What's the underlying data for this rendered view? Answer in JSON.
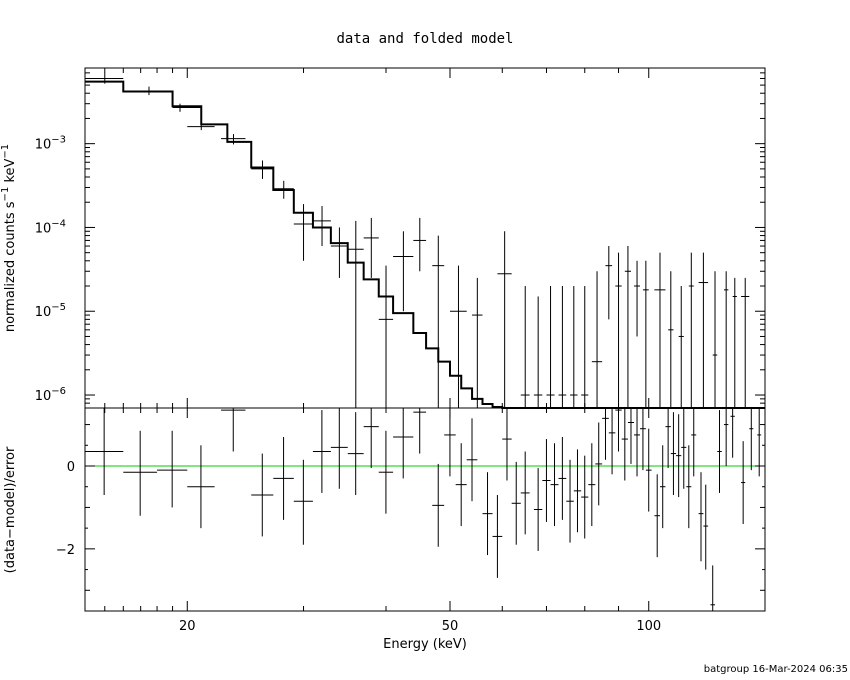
{
  "chart_data": {
    "type": "scatter",
    "title": "data and folded model",
    "footer": "batgroup 16-Mar-2024 06:35",
    "xlabel": "Energy (keV)",
    "x_scale": "log",
    "xlim": [
      14,
      150
    ],
    "x_ticks": [
      {
        "value": 20,
        "label": "20"
      },
      {
        "value": 50,
        "label": "50"
      },
      {
        "value": 100,
        "label": "100"
      }
    ],
    "top_panel": {
      "ylabel_parts": [
        "normalized counts s",
        "−1",
        " keV",
        "−1"
      ],
      "y_scale": "log",
      "ylim": [
        7e-07,
        0.008
      ],
      "y_ticks": [
        {
          "value": 1e-06,
          "base": "10",
          "exp": "−6"
        },
        {
          "value": 1e-05,
          "base": "10",
          "exp": "−5"
        },
        {
          "value": 0.0001,
          "base": "10",
          "exp": "−4"
        },
        {
          "value": 0.001,
          "base": "10",
          "exp": "−3"
        }
      ],
      "data": [
        {
          "x": 15.0,
          "xl": 14.0,
          "xh": 16.0,
          "y": 0.006,
          "yl": 0.0052,
          "yh": 0.007
        },
        {
          "x": 17.5,
          "xl": 16.0,
          "xh": 19.0,
          "y": 0.0042,
          "yl": 0.0038,
          "yh": 0.0048
        },
        {
          "x": 19.5,
          "xl": 19.0,
          "xh": 21.0,
          "y": 0.0027,
          "yl": 0.0024,
          "yh": 0.003
        },
        {
          "x": 21.0,
          "xl": 20.0,
          "xh": 22.0,
          "y": 0.0016,
          "yl": 0.00145,
          "yh": 0.0018
        },
        {
          "x": 23.5,
          "xl": 22.5,
          "xh": 24.5,
          "y": 0.00115,
          "yl": 0.00098,
          "yh": 0.0013
        },
        {
          "x": 26.0,
          "xl": 25.0,
          "xh": 27.0,
          "y": 0.0005,
          "yl": 0.00038,
          "yh": 0.00063
        },
        {
          "x": 28.0,
          "xl": 27.0,
          "xh": 29.0,
          "y": 0.00029,
          "yl": 0.00022,
          "yh": 0.00036
        },
        {
          "x": 30.0,
          "xl": 29.0,
          "xh": 31.0,
          "y": 0.00011,
          "yl": 4e-05,
          "yh": 0.00019
        },
        {
          "x": 32.0,
          "xl": 31.0,
          "xh": 33.0,
          "y": 0.00012,
          "yl": 6e-05,
          "yh": 0.00018
        },
        {
          "x": 34.0,
          "xl": 33.0,
          "xh": 35.0,
          "y": 6e-05,
          "yl": 2.5e-05,
          "yh": 0.0001
        },
        {
          "x": 36.0,
          "xl": 35.0,
          "xh": 37.0,
          "y": 5.5e-05,
          "yl": 7e-07,
          "yh": 0.00012
        },
        {
          "x": 38.0,
          "xl": 37.0,
          "xh": 39.0,
          "y": 7.5e-05,
          "yl": 2.5e-05,
          "yh": 0.00013
        },
        {
          "x": 40.0,
          "xl": 39.0,
          "xh": 41.0,
          "y": 8e-06,
          "yl": 7e-07,
          "yh": 3.5e-05
        },
        {
          "x": 42.5,
          "xl": 41.0,
          "xh": 44.0,
          "y": 4.5e-05,
          "yl": 1e-05,
          "yh": 9e-05
        },
        {
          "x": 45.0,
          "xl": 44.0,
          "xh": 46.0,
          "y": 7e-05,
          "yl": 3e-05,
          "yh": 0.00013
        },
        {
          "x": 48.0,
          "xl": 47.0,
          "xh": 49.0,
          "y": 3.5e-05,
          "yl": 7e-07,
          "yh": 8e-05
        },
        {
          "x": 51.5,
          "xl": 50.0,
          "xh": 53.0,
          "y": 1e-05,
          "yl": 7e-07,
          "yh": 3.5e-05
        },
        {
          "x": 55.0,
          "xl": 54.0,
          "xh": 56.0,
          "y": 9e-06,
          "yl": 7e-07,
          "yh": 2.5e-05
        },
        {
          "x": 60.5,
          "xl": 59.0,
          "xh": 62.0,
          "y": 2.8e-05,
          "yl": 7e-07,
          "yh": 9e-05
        },
        {
          "x": 65.0,
          "xl": 64.0,
          "xh": 66.0,
          "y": 1e-06,
          "yl": 7e-07,
          "yh": 2e-05
        },
        {
          "x": 68.0,
          "xl": 67.0,
          "xh": 69.0,
          "y": 1e-06,
          "yl": 7e-07,
          "yh": 1.5e-05
        },
        {
          "x": 71.0,
          "xl": 70.0,
          "xh": 72.0,
          "y": 1e-06,
          "yl": 7e-07,
          "yh": 2e-05
        },
        {
          "x": 74.0,
          "xl": 73.0,
          "xh": 75.0,
          "y": 1e-06,
          "yl": 7e-07,
          "yh": 2e-05
        },
        {
          "x": 77.0,
          "xl": 76.0,
          "xh": 78.0,
          "y": 1e-06,
          "yl": 7e-07,
          "yh": 2e-05
        },
        {
          "x": 80.0,
          "xl": 79.0,
          "xh": 81.0,
          "y": 1e-06,
          "yl": 7e-07,
          "yh": 2e-05
        },
        {
          "x": 83.5,
          "xl": 82.0,
          "xh": 85.0,
          "y": 2.5e-06,
          "yl": 7e-07,
          "yh": 3e-05
        },
        {
          "x": 87.0,
          "xl": 86.0,
          "xh": 88.0,
          "y": 3.5e-05,
          "yl": 8e-06,
          "yh": 6e-05
        },
        {
          "x": 90.0,
          "xl": 89.0,
          "xh": 91.0,
          "y": 2e-05,
          "yl": 7e-07,
          "yh": 5e-05
        },
        {
          "x": 93.0,
          "xl": 92.0,
          "xh": 94.0,
          "y": 3e-05,
          "yl": 7e-07,
          "yh": 6e-05
        },
        {
          "x": 96.0,
          "xl": 95.0,
          "xh": 97.0,
          "y": 2e-05,
          "yl": 5e-06,
          "yh": 4e-05
        },
        {
          "x": 99.0,
          "xl": 98.0,
          "xh": 100.0,
          "y": 1.8e-05,
          "yl": 7e-07,
          "yh": 4e-05
        },
        {
          "x": 104.0,
          "xl": 102.0,
          "xh": 106.0,
          "y": 1.8e-05,
          "yl": 7e-07,
          "yh": 5e-05
        },
        {
          "x": 108.0,
          "xl": 107.0,
          "xh": 109.0,
          "y": 6e-06,
          "yl": 7e-07,
          "yh": 3e-05
        },
        {
          "x": 112.0,
          "xl": 111.0,
          "xh": 113.0,
          "y": 5e-06,
          "yl": 7e-07,
          "yh": 2e-05
        },
        {
          "x": 116.0,
          "xl": 115.0,
          "xh": 117.0,
          "y": 2e-05,
          "yl": 7e-07,
          "yh": 5e-05
        },
        {
          "x": 121.0,
          "xl": 119.0,
          "xh": 123.0,
          "y": 2.2e-05,
          "yl": 7e-07,
          "yh": 5e-05
        },
        {
          "x": 126.0,
          "xl": 125.0,
          "xh": 127.0,
          "y": 3e-06,
          "yl": 7e-07,
          "yh": 3e-05
        },
        {
          "x": 131.0,
          "xl": 130.0,
          "xh": 132.0,
          "y": 1.8e-05,
          "yl": 7e-07,
          "yh": 3e-05
        },
        {
          "x": 135.0,
          "xl": 134.0,
          "xh": 136.0,
          "y": 1.5e-05,
          "yl": 7e-07,
          "yh": 2.5e-05
        },
        {
          "x": 140.0,
          "xl": 138.0,
          "xh": 142.0,
          "y": 1.5e-05,
          "yl": 7e-07,
          "yh": 2.5e-05
        }
      ],
      "model": [
        [
          14.0,
          0.0055
        ],
        [
          16.0,
          0.0042
        ],
        [
          19.0,
          0.0028
        ],
        [
          21.0,
          0.0017
        ],
        [
          23.0,
          0.00105
        ],
        [
          25.0,
          0.00052
        ],
        [
          27.0,
          0.00028
        ],
        [
          29.0,
          0.00015
        ],
        [
          31.0,
          0.0001
        ],
        [
          33.0,
          6.5e-05
        ],
        [
          35.0,
          3.8e-05
        ],
        [
          37.0,
          2.4e-05
        ],
        [
          39.0,
          1.5e-05
        ],
        [
          41.0,
          9.5e-06
        ],
        [
          44.0,
          5.5e-06
        ],
        [
          46.0,
          3.6e-06
        ],
        [
          48.0,
          2.5e-06
        ],
        [
          50.0,
          1.7e-06
        ],
        [
          52.0,
          1.2e-06
        ],
        [
          54.0,
          9e-07
        ],
        [
          56.0,
          7.8e-07
        ],
        [
          58.0,
          7.2e-07
        ],
        [
          60.0,
          7e-07
        ],
        [
          150.0,
          7e-07
        ]
      ]
    },
    "bottom_panel": {
      "ylabel": "(data−model)/error",
      "ylim": [
        -3.5,
        1.4
      ],
      "y_ticks": [
        {
          "value": 0,
          "label": "0"
        },
        {
          "value": -2,
          "label": "−2"
        }
      ],
      "zero_line_color": "#00cc00",
      "data": [
        {
          "xl": 14.0,
          "xh": 16.0,
          "y": 0.35,
          "yl": -0.7,
          "yh": 1.4
        },
        {
          "xl": 16.0,
          "xh": 18.0,
          "y": -0.15,
          "yl": -1.2,
          "yh": 0.85
        },
        {
          "xl": 18.0,
          "xh": 20.0,
          "y": -0.1,
          "yl": -1.0,
          "yh": 0.85
        },
        {
          "xl": 20.0,
          "xh": 22.0,
          "y": -0.5,
          "yl": -1.5,
          "yh": 0.5
        },
        {
          "xl": 22.5,
          "xh": 24.5,
          "y": 1.35,
          "yl": 0.35,
          "yh": 1.4
        },
        {
          "xl": 25.0,
          "xh": 27.0,
          "y": -0.7,
          "yl": -1.7,
          "yh": 0.3
        },
        {
          "xl": 27.0,
          "xh": 29.0,
          "y": -0.3,
          "yl": -1.3,
          "yh": 0.7
        },
        {
          "xl": 29.0,
          "xh": 31.0,
          "y": -0.85,
          "yl": -1.9,
          "yh": 0.15
        },
        {
          "xl": 31.0,
          "xh": 33.0,
          "y": 0.35,
          "yl": -0.65,
          "yh": 1.35
        },
        {
          "xl": 33.0,
          "xh": 35.0,
          "y": 0.45,
          "yl": -0.55,
          "yh": 1.4
        },
        {
          "xl": 35.0,
          "xh": 37.0,
          "y": 0.3,
          "yl": -0.7,
          "yh": 1.3
        },
        {
          "xl": 37.0,
          "xh": 39.0,
          "y": 0.95,
          "yl": -0.05,
          "yh": 1.4
        },
        {
          "xl": 39.0,
          "xh": 41.0,
          "y": -0.15,
          "yl": -1.15,
          "yh": 0.85
        },
        {
          "xl": 41.0,
          "xh": 44.0,
          "y": 0.7,
          "yl": -0.3,
          "yh": 1.4
        },
        {
          "xl": 44.0,
          "xh": 46.0,
          "y": 1.3,
          "yl": 0.3,
          "yh": 1.4
        },
        {
          "xl": 47.0,
          "xh": 49.0,
          "y": -0.95,
          "yl": -1.95,
          "yh": 0.05
        },
        {
          "xl": 49.0,
          "xh": 51.0,
          "y": 0.75,
          "yl": -0.25,
          "yh": 1.4
        },
        {
          "xl": 51.0,
          "xh": 53.0,
          "y": -0.45,
          "yl": -1.45,
          "yh": 0.55
        },
        {
          "xl": 53.0,
          "xh": 55.0,
          "y": 0.15,
          "yl": -0.85,
          "yh": 1.15
        },
        {
          "xl": 56.0,
          "xh": 58.0,
          "y": -1.15,
          "yl": -2.15,
          "yh": -0.15
        },
        {
          "xl": 58.0,
          "xh": 60.0,
          "y": -1.7,
          "yl": -2.7,
          "yh": -0.7
        },
        {
          "xl": 60.0,
          "xh": 62.0,
          "y": 0.65,
          "yl": -0.35,
          "yh": 1.4
        },
        {
          "xl": 62.0,
          "xh": 64.0,
          "y": -0.9,
          "yl": -1.9,
          "yh": 0.1
        },
        {
          "xl": 64.0,
          "xh": 66.0,
          "y": -0.65,
          "yl": -1.65,
          "yh": 0.35
        },
        {
          "xl": 67.0,
          "xh": 69.0,
          "y": -1.05,
          "yl": -2.05,
          "yh": -0.05
        },
        {
          "xl": 69.0,
          "xh": 71.0,
          "y": -0.35,
          "yl": -1.35,
          "yh": 0.65
        },
        {
          "xl": 71.0,
          "xh": 73.0,
          "y": -0.45,
          "yl": -1.45,
          "yh": 0.55
        },
        {
          "xl": 73.0,
          "xh": 75.0,
          "y": -0.3,
          "yl": -1.3,
          "yh": 0.7
        },
        {
          "xl": 75.0,
          "xh": 77.0,
          "y": -0.85,
          "yl": -1.85,
          "yh": 0.15
        },
        {
          "xl": 77.0,
          "xh": 79.0,
          "y": -0.6,
          "yl": -1.6,
          "yh": 0.4
        },
        {
          "xl": 79.0,
          "xh": 81.0,
          "y": -0.75,
          "yl": -1.75,
          "yh": 0.25
        },
        {
          "xl": 81.0,
          "xh": 83.0,
          "y": -0.45,
          "yl": -1.45,
          "yh": 0.55
        },
        {
          "xl": 83.0,
          "xh": 85.0,
          "y": 0.05,
          "yl": -0.95,
          "yh": 1.05
        },
        {
          "xl": 85.0,
          "xh": 87.0,
          "y": 1.15,
          "yl": 0.15,
          "yh": 1.4
        },
        {
          "xl": 87.0,
          "xh": 89.0,
          "y": 0.8,
          "yl": -0.2,
          "yh": 1.4
        },
        {
          "xl": 89.0,
          "xh": 91.0,
          "y": 1.35,
          "yl": 0.35,
          "yh": 1.4
        },
        {
          "xl": 91.0,
          "xh": 93.0,
          "y": 0.65,
          "yl": -0.35,
          "yh": 1.4
        },
        {
          "xl": 93.0,
          "xh": 95.0,
          "y": 1.05,
          "yl": 0.05,
          "yh": 1.4
        },
        {
          "xl": 95.0,
          "xh": 97.0,
          "y": 0.75,
          "yl": -0.25,
          "yh": 1.4
        },
        {
          "xl": 97.0,
          "xh": 99.0,
          "y": 0.9,
          "yl": -0.1,
          "yh": 1.4
        },
        {
          "xl": 99.0,
          "xh": 101.0,
          "y": -0.1,
          "yl": -1.1,
          "yh": 0.9
        },
        {
          "xl": 102.0,
          "xh": 104.0,
          "y": -1.2,
          "yl": -2.2,
          "yh": -0.2
        },
        {
          "xl": 104.0,
          "xh": 106.0,
          "y": -0.5,
          "yl": -1.5,
          "yh": 0.5
        },
        {
          "xl": 106.0,
          "xh": 108.0,
          "y": 0.95,
          "yl": -0.05,
          "yh": 1.4
        },
        {
          "xl": 108.0,
          "xh": 110.0,
          "y": 0.3,
          "yl": -0.7,
          "yh": 1.3
        },
        {
          "xl": 110.0,
          "xh": 112.0,
          "y": 0.25,
          "yl": -0.75,
          "yh": 1.25
        },
        {
          "xl": 112.0,
          "xh": 114.0,
          "y": 0.45,
          "yl": -0.55,
          "yh": 1.4
        },
        {
          "xl": 114.0,
          "xh": 116.0,
          "y": -0.5,
          "yl": -1.5,
          "yh": 0.5
        },
        {
          "xl": 116.0,
          "xh": 118.0,
          "y": 0.75,
          "yl": -0.25,
          "yh": 1.4
        },
        {
          "xl": 119.0,
          "xh": 121.0,
          "y": -1.15,
          "yl": -2.3,
          "yh": -0.15
        },
        {
          "xl": 121.0,
          "xh": 123.0,
          "y": -1.45,
          "yl": -2.5,
          "yh": -0.45
        },
        {
          "xl": 124.0,
          "xh": 126.0,
          "y": -3.35,
          "yl": -3.5,
          "yh": -2.4
        },
        {
          "xl": 127.0,
          "xh": 129.0,
          "y": 0.35,
          "yl": -0.65,
          "yh": 1.35
        },
        {
          "xl": 130.0,
          "xh": 132.0,
          "y": 1.0,
          "yl": 0.0,
          "yh": 1.4
        },
        {
          "xl": 133.0,
          "xh": 135.0,
          "y": 1.2,
          "yl": 0.2,
          "yh": 1.4
        },
        {
          "xl": 138.0,
          "xh": 140.0,
          "y": -0.4,
          "yl": -1.4,
          "yh": 0.6
        },
        {
          "xl": 142.0,
          "xh": 144.0,
          "y": 0.9,
          "yl": -0.1,
          "yh": 1.4
        },
        {
          "xl": 146.0,
          "xh": 148.0,
          "y": 0.75,
          "yl": -0.25,
          "yh": 1.4
        }
      ]
    }
  }
}
